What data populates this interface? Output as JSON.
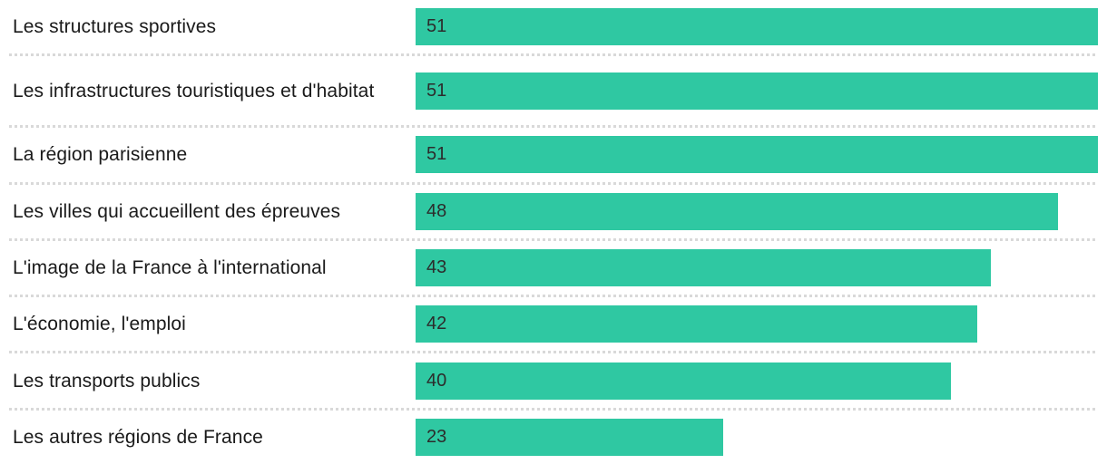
{
  "chart": {
    "bar_color": "#2fc8a2",
    "value_text_color": "#2c2c2c",
    "label_text_color": "#1a1a1a",
    "divider_color": "#d9d9d9",
    "max_value": 51,
    "rows": [
      {
        "label": "Les structures sportives",
        "value": 51,
        "tall": false
      },
      {
        "label": "Les infrastructures touristiques et d'habitat",
        "value": 51,
        "tall": true
      },
      {
        "label": "La région parisienne",
        "value": 51,
        "tall": false
      },
      {
        "label": "Les villes qui accueillent des épreuves",
        "value": 48,
        "tall": false
      },
      {
        "label": "L'image de la France à l'international",
        "value": 43,
        "tall": false
      },
      {
        "label": "L'économie, l'emploi",
        "value": 42,
        "tall": false
      },
      {
        "label": "Les transports publics",
        "value": 40,
        "tall": false
      },
      {
        "label": "Les autres régions de France",
        "value": 23,
        "tall": false
      }
    ]
  },
  "chart_data": {
    "type": "bar",
    "orientation": "horizontal",
    "title": "",
    "xlabel": "",
    "ylabel": "",
    "categories": [
      "Les structures sportives",
      "Les infrastructures touristiques et d'habitat",
      "La région parisienne",
      "Les villes qui accueillent des épreuves",
      "L'image de la France à l'international",
      "L'économie, l'emploi",
      "Les transports publics",
      "Les autres régions de France"
    ],
    "values": [
      51,
      51,
      51,
      48,
      43,
      42,
      40,
      23
    ],
    "xlim": [
      0,
      51
    ],
    "grid": false,
    "legend": false,
    "value_labels": "inside-bar-start",
    "bar_color": "#2fc8a2"
  }
}
